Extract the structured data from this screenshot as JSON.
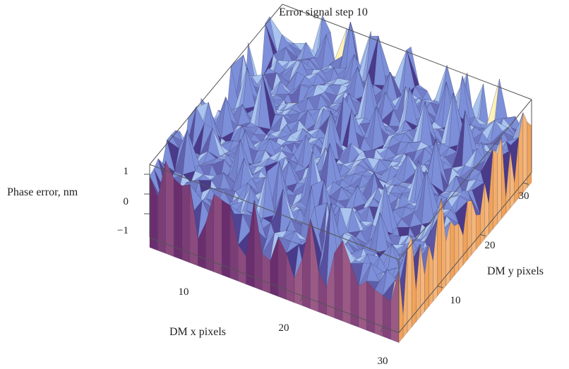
{
  "chart_data": {
    "type": "surface3d",
    "title": "Error signal  step 10",
    "xlabel": "DM x pixels",
    "ylabel": "DM y pixels",
    "zlabel": "Phase error, nm",
    "xticks": [
      "10",
      "20",
      "30"
    ],
    "yticks": [
      "10",
      "20",
      "30"
    ],
    "zticks": [
      "1",
      "0",
      "−1"
    ],
    "xlim": [
      1,
      32
    ],
    "ylim": [
      1,
      32
    ],
    "zlim": [
      -1.5,
      1.5
    ],
    "colors": {
      "surface_light": "#a9c4ee",
      "surface_mid": "#7c8fd8",
      "surface_dark": "#4a3a8a",
      "side_dark": "#6a2e6e",
      "side_mid": "#9b5a86",
      "side_orange": "#f0a35a",
      "side_peach": "#f6c08c",
      "highlight_cyan": "#d6f2ff",
      "highlight_yellow": "#fff1b8",
      "box": "#555555"
    }
  }
}
